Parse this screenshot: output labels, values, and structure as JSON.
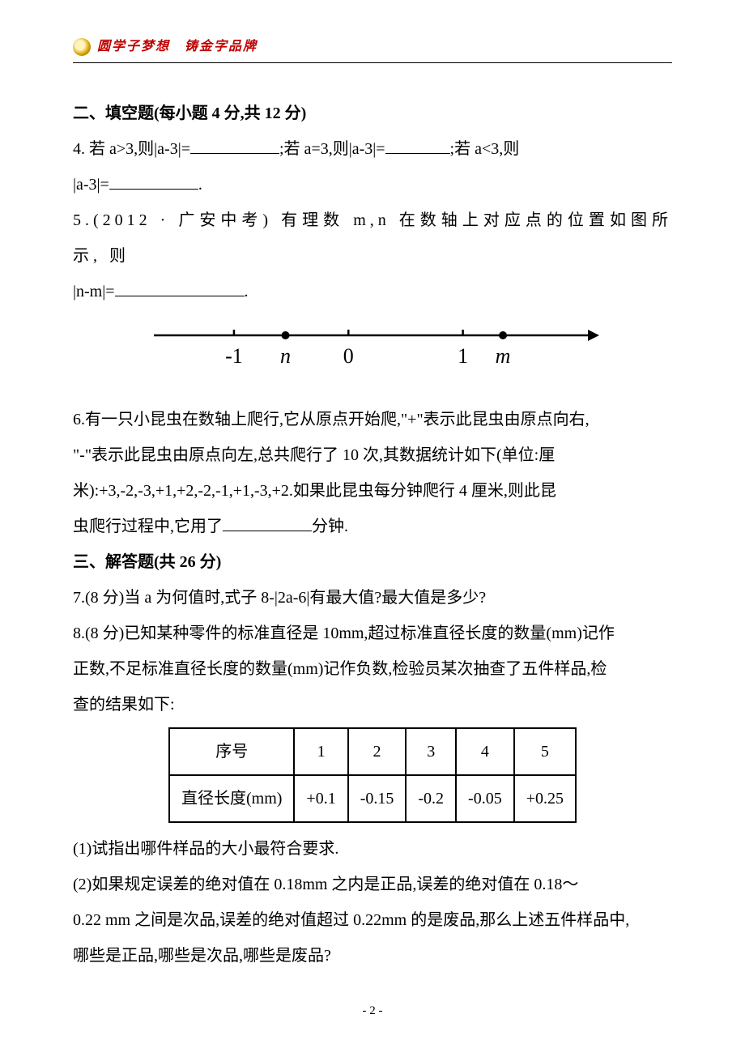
{
  "header": {
    "tagline_a": "圆学子梦想",
    "tagline_b": "铸金字品牌"
  },
  "section2": {
    "title": "二、填空题(每小题 4 分,共 12 分)",
    "q4": {
      "part1": "4. 若 a>3,则|a-3|=",
      "part2": ";若 a=3,则|a-3|=",
      "part3": ";若 a<3,则",
      "part4_pre": "|a-3|=",
      "part4_post": "."
    },
    "q5": {
      "line1": "5.(2012 · 广安中考) 有理数 m,n 在数轴上对应点的位置如图所示, 则",
      "line2_pre": "|n-m|=",
      "line2_post": "."
    },
    "numberline": {
      "labels": [
        "-1",
        "n",
        "0",
        "1",
        "m"
      ],
      "positions": [
        -1,
        -0.55,
        0,
        1,
        1.35
      ],
      "point_positions": [
        -0.55,
        1.35
      ],
      "xlim": [
        -1.7,
        2.05
      ],
      "axis_color": "#000000",
      "tick_color": "#000000",
      "font_family": "Times New Roman, serif",
      "label_fontsize": 26,
      "italic_labels": [
        "n",
        "m"
      ]
    },
    "q6": {
      "l1": "6.有一只小昆虫在数轴上爬行,它从原点开始爬,\"+\"表示此昆虫由原点向右,",
      "l2": "\"-\"表示此昆虫由原点向左,总共爬行了 10 次,其数据统计如下(单位:厘",
      "l3": "米):+3,-2,-3,+1,+2,-2,-1,+1,-3,+2.如果此昆虫每分钟爬行 4 厘米,则此昆",
      "l4_pre": "虫爬行过程中,它用了",
      "l4_post": "分钟."
    }
  },
  "section3": {
    "title": "三、解答题(共 26 分)",
    "q7": "7.(8 分)当 a 为何值时,式子 8-|2a-6|有最大值?最大值是多少?",
    "q8": {
      "l1": "8.(8 分)已知某种零件的标准直径是 10mm,超过标准直径长度的数量(mm)记作",
      "l2": "正数,不足标准直径长度的数量(mm)记作负数,检验员某次抽查了五件样品,检",
      "l3": "查的结果如下:"
    },
    "table": {
      "header_label": "序号",
      "row_label": "直径长度(mm)",
      "cols": [
        "1",
        "2",
        "3",
        "4",
        "5"
      ],
      "vals": [
        "+0.1",
        "-0.15",
        "-0.2",
        "-0.05",
        "+0.25"
      ],
      "border_color": "#000000",
      "cell_padding": "6px 14px",
      "font_size": 20
    },
    "sub1": "(1)试指出哪件样品的大小最符合要求.",
    "sub2_l1": "(2)如果规定误差的绝对值在 0.18mm 之内是正品,误差的绝对值在 0.18～",
    "sub2_l2": "0.22 mm 之间是次品,误差的绝对值超过 0.22mm 的是废品,那么上述五件样品中,",
    "sub2_l3": "哪些是正品,哪些是次品,哪些是废品?"
  },
  "footer": {
    "page": "- 2 -"
  }
}
